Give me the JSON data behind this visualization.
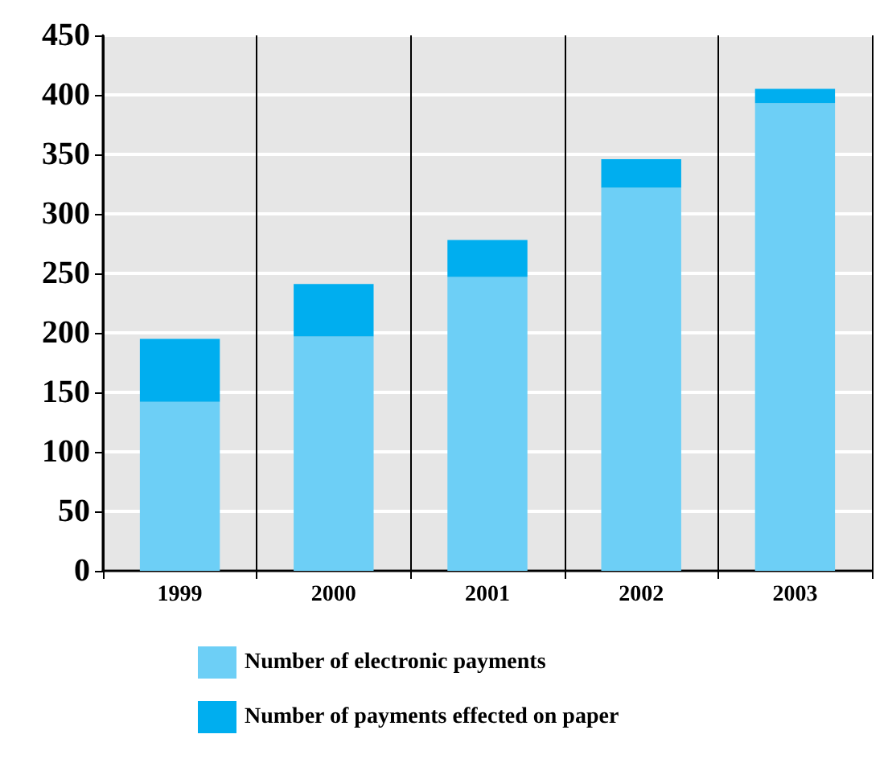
{
  "chart_data": {
    "type": "bar",
    "stacked": true,
    "categories": [
      "1999",
      "2000",
      "2001",
      "2002",
      "2003"
    ],
    "series": [
      {
        "name": "Number of electronic payments",
        "color": "#6dcff6",
        "values": [
          142,
          197,
          247,
          322,
          393
        ]
      },
      {
        "name": "Number of payments effected on paper",
        "color": "#00aeef",
        "values": [
          53,
          44,
          31,
          24,
          12
        ]
      }
    ],
    "ylim": [
      0,
      450
    ],
    "yticks": [
      0,
      50,
      100,
      150,
      200,
      250,
      300,
      350,
      400,
      450
    ],
    "grid": true,
    "legend": "bottom"
  }
}
